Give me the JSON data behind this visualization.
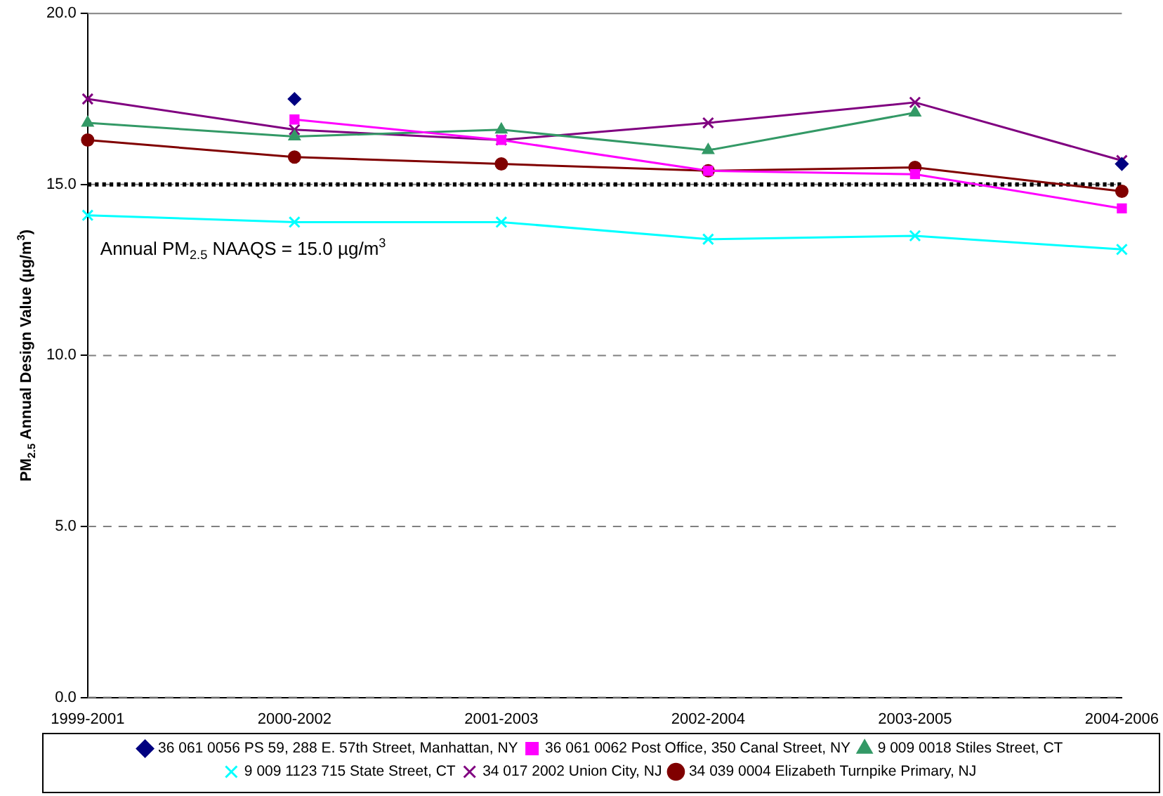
{
  "chart_data": {
    "type": "line",
    "ylabel": "PM$_{2.5}$ Annual Design Value (µg/m$^{3}$)",
    "categories": [
      "1999-2001",
      "2000-2002",
      "2001-2003",
      "2002-2004",
      "2003-2005",
      "2004-2006"
    ],
    "series": [
      {
        "name": "36 061 0056 PS 59, 288 E. 57th Street, Manhattan, NY",
        "type": "scatter",
        "color": "#000080",
        "marker": "diamond",
        "values": [
          null,
          17.5,
          null,
          null,
          null,
          15.6
        ]
      },
      {
        "name": "36 061 0062 Post Office, 350 Canal Street, NY",
        "color": "#ff00ff",
        "marker": "square",
        "values": [
          null,
          16.9,
          16.3,
          15.4,
          15.3,
          14.3
        ]
      },
      {
        "name": "9 009 0018 Stiles Street, CT",
        "color": "#339966",
        "marker": "triangle",
        "values": [
          16.8,
          16.4,
          16.6,
          16.0,
          17.1,
          null
        ]
      },
      {
        "name": "9 009 1123 715 State Street, CT",
        "color": "#00ffff",
        "marker": "cross",
        "values": [
          14.1,
          13.9,
          13.9,
          13.4,
          13.5,
          13.1
        ]
      },
      {
        "name": "34 017 2002 Union City, NJ",
        "color": "#800080",
        "marker": "cross",
        "values": [
          17.5,
          16.6,
          16.3,
          16.8,
          17.4,
          15.7
        ]
      },
      {
        "name": "34 039 0004 Elizabeth Turnpike Primary, NJ",
        "color": "#800000",
        "marker": "circle",
        "values": [
          16.3,
          15.8,
          15.6,
          15.4,
          15.5,
          14.8
        ]
      }
    ],
    "ylim": [
      0,
      20
    ],
    "yticks": [
      {
        "value": 0,
        "label": "0.0"
      },
      {
        "value": 5,
        "label": "5.0"
      },
      {
        "value": 10,
        "label": "10.0"
      },
      {
        "value": 15,
        "label": "15.0"
      },
      {
        "value": 20,
        "label": "20.0"
      }
    ],
    "ref_lines": [
      {
        "axis": "y",
        "value": 15,
        "label": "Annual PM$_{2.5}$ NAAQS = 15.0 µg/m$^{3}$",
        "color": "#000000",
        "line_style": "dotted"
      }
    ],
    "grid": "y",
    "legend": "bottom",
    "line_style": "solid"
  }
}
